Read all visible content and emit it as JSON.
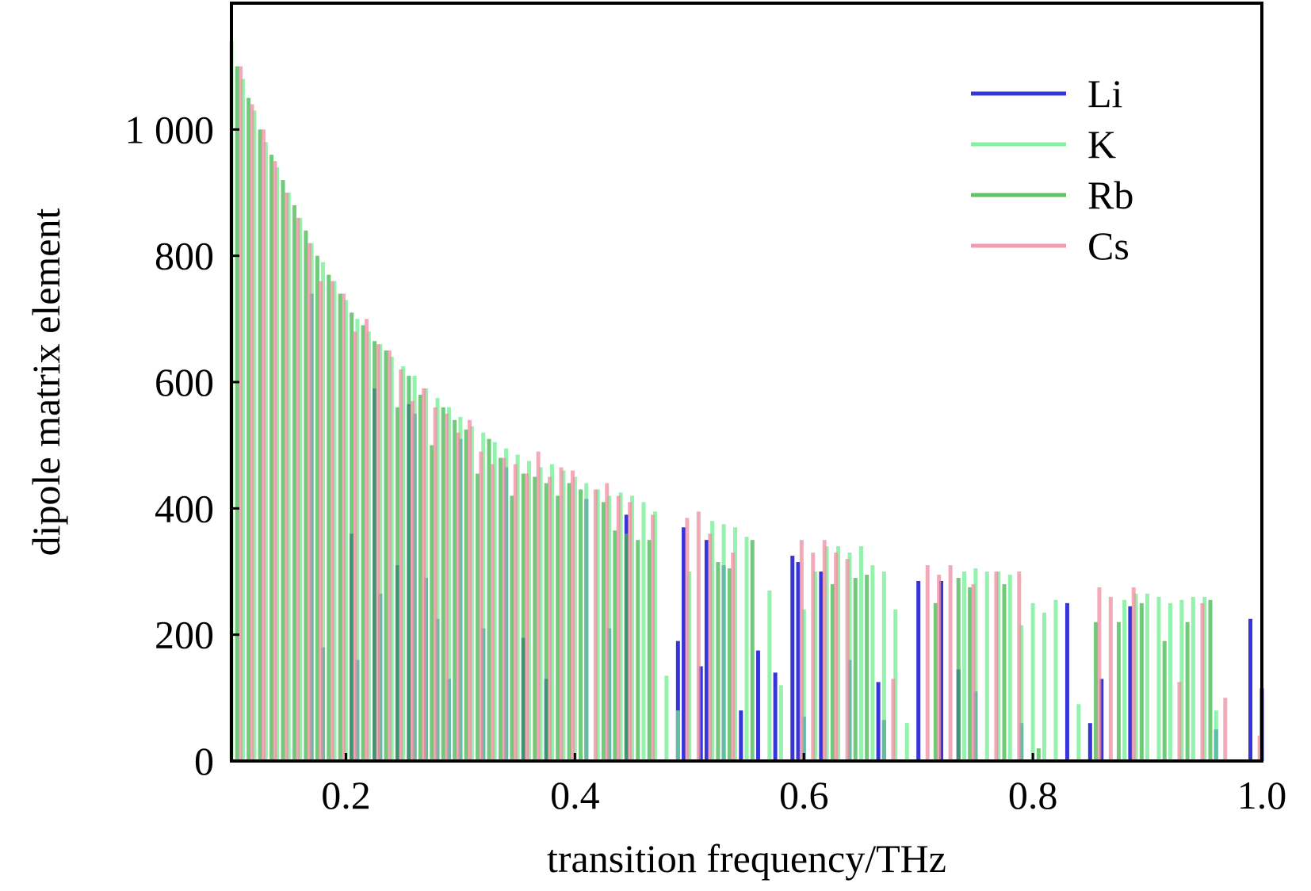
{
  "chart_data": {
    "type": "bar",
    "xlabel": "transition frequency/THz",
    "ylabel": "dipole matrix element",
    "xlim": [
      0.1,
      1.0
    ],
    "ylim": [
      0,
      1200
    ],
    "x_ticks": [
      0.2,
      0.4,
      0.6,
      0.8,
      1.0
    ],
    "x_tick_labels": [
      "0.2",
      "0.4",
      "0.6",
      "0.8",
      "1.0"
    ],
    "y_ticks": [
      0,
      200,
      400,
      600,
      800,
      1000
    ],
    "y_tick_labels": [
      "0",
      "200",
      "400",
      "600",
      "800",
      "1 000"
    ],
    "grid": false,
    "legend_position": "top-right",
    "series": [
      {
        "name": "Li",
        "color": "#2a2ad8",
        "points": [
          [
            0.17,
            740
          ],
          [
            0.18,
            180
          ],
          [
            0.205,
            360
          ],
          [
            0.21,
            160
          ],
          [
            0.225,
            590
          ],
          [
            0.23,
            265
          ],
          [
            0.245,
            310
          ],
          [
            0.255,
            565
          ],
          [
            0.26,
            550
          ],
          [
            0.27,
            290
          ],
          [
            0.28,
            225
          ],
          [
            0.29,
            130
          ],
          [
            0.3,
            510
          ],
          [
            0.32,
            210
          ],
          [
            0.34,
            465
          ],
          [
            0.355,
            195
          ],
          [
            0.375,
            130
          ],
          [
            0.41,
            415
          ],
          [
            0.43,
            210
          ],
          [
            0.445,
            390
          ],
          [
            0.49,
            190
          ],
          [
            0.495,
            370
          ],
          [
            0.51,
            150
          ],
          [
            0.515,
            350
          ],
          [
            0.53,
            310
          ],
          [
            0.545,
            80
          ],
          [
            0.56,
            175
          ],
          [
            0.575,
            140
          ],
          [
            0.59,
            325
          ],
          [
            0.595,
            315
          ],
          [
            0.6,
            70
          ],
          [
            0.615,
            300
          ],
          [
            0.64,
            160
          ],
          [
            0.665,
            125
          ],
          [
            0.67,
            65
          ],
          [
            0.7,
            285
          ],
          [
            0.72,
            285
          ],
          [
            0.735,
            145
          ],
          [
            0.75,
            110
          ],
          [
            0.79,
            60
          ],
          [
            0.83,
            250
          ],
          [
            0.85,
            60
          ],
          [
            0.86,
            130
          ],
          [
            0.885,
            245
          ],
          [
            0.96,
            50
          ],
          [
            0.99,
            225
          ],
          [
            1.0,
            115
          ]
        ]
      },
      {
        "name": "K",
        "color": "#6fee8f",
        "points": [
          [
            0.1,
            1140
          ],
          [
            0.11,
            1080
          ],
          [
            0.12,
            1030
          ],
          [
            0.13,
            980
          ],
          [
            0.14,
            940
          ],
          [
            0.15,
            900
          ],
          [
            0.16,
            860
          ],
          [
            0.17,
            820
          ],
          [
            0.18,
            790
          ],
          [
            0.19,
            760
          ],
          [
            0.2,
            730
          ],
          [
            0.21,
            700
          ],
          [
            0.22,
            680
          ],
          [
            0.23,
            660
          ],
          [
            0.24,
            640
          ],
          [
            0.25,
            625
          ],
          [
            0.26,
            610
          ],
          [
            0.27,
            590
          ],
          [
            0.28,
            575
          ],
          [
            0.29,
            560
          ],
          [
            0.3,
            545
          ],
          [
            0.31,
            530
          ],
          [
            0.32,
            520
          ],
          [
            0.33,
            505
          ],
          [
            0.34,
            495
          ],
          [
            0.35,
            485
          ],
          [
            0.36,
            475
          ],
          [
            0.37,
            465
          ],
          [
            0.38,
            470
          ],
          [
            0.39,
            460
          ],
          [
            0.4,
            450
          ],
          [
            0.41,
            440
          ],
          [
            0.42,
            430
          ],
          [
            0.43,
            420
          ],
          [
            0.44,
            425
          ],
          [
            0.45,
            420
          ],
          [
            0.46,
            410
          ],
          [
            0.47,
            395
          ],
          [
            0.48,
            135
          ],
          [
            0.49,
            80
          ],
          [
            0.5,
            300
          ],
          [
            0.52,
            380
          ],
          [
            0.53,
            375
          ],
          [
            0.54,
            370
          ],
          [
            0.55,
            355
          ],
          [
            0.57,
            270
          ],
          [
            0.58,
            120
          ],
          [
            0.6,
            240
          ],
          [
            0.61,
            300
          ],
          [
            0.62,
            340
          ],
          [
            0.63,
            340
          ],
          [
            0.64,
            330
          ],
          [
            0.65,
            340
          ],
          [
            0.66,
            310
          ],
          [
            0.67,
            300
          ],
          [
            0.68,
            240
          ],
          [
            0.69,
            60
          ],
          [
            0.74,
            300
          ],
          [
            0.75,
            305
          ],
          [
            0.76,
            300
          ],
          [
            0.77,
            300
          ],
          [
            0.78,
            295
          ],
          [
            0.79,
            215
          ],
          [
            0.8,
            250
          ],
          [
            0.81,
            235
          ],
          [
            0.82,
            255
          ],
          [
            0.84,
            90
          ],
          [
            0.88,
            255
          ],
          [
            0.89,
            265
          ],
          [
            0.9,
            265
          ],
          [
            0.91,
            260
          ],
          [
            0.92,
            250
          ],
          [
            0.93,
            255
          ],
          [
            0.94,
            260
          ],
          [
            0.95,
            260
          ],
          [
            0.96,
            80
          ]
        ]
      },
      {
        "name": "Rb",
        "color": "#3fb84c",
        "points": [
          [
            0.105,
            1100
          ],
          [
            0.115,
            1050
          ],
          [
            0.125,
            1000
          ],
          [
            0.135,
            960
          ],
          [
            0.145,
            920
          ],
          [
            0.155,
            880
          ],
          [
            0.165,
            840
          ],
          [
            0.175,
            800
          ],
          [
            0.185,
            770
          ],
          [
            0.195,
            740
          ],
          [
            0.205,
            710
          ],
          [
            0.215,
            690
          ],
          [
            0.225,
            665
          ],
          [
            0.235,
            650
          ],
          [
            0.245,
            560
          ],
          [
            0.255,
            610
          ],
          [
            0.265,
            580
          ],
          [
            0.275,
            500
          ],
          [
            0.285,
            560
          ],
          [
            0.295,
            540
          ],
          [
            0.305,
            525
          ],
          [
            0.315,
            455
          ],
          [
            0.325,
            510
          ],
          [
            0.335,
            480
          ],
          [
            0.345,
            420
          ],
          [
            0.355,
            455
          ],
          [
            0.365,
            450
          ],
          [
            0.375,
            440
          ],
          [
            0.385,
            420
          ],
          [
            0.395,
            440
          ],
          [
            0.405,
            430
          ],
          [
            0.425,
            410
          ],
          [
            0.435,
            365
          ],
          [
            0.445,
            360
          ],
          [
            0.455,
            350
          ],
          [
            0.465,
            350
          ],
          [
            0.525,
            315
          ],
          [
            0.535,
            305
          ],
          [
            0.555,
            350
          ],
          [
            0.625,
            280
          ],
          [
            0.645,
            290
          ],
          [
            0.655,
            295
          ],
          [
            0.715,
            250
          ],
          [
            0.735,
            290
          ],
          [
            0.745,
            275
          ],
          [
            0.775,
            280
          ],
          [
            0.805,
            20
          ],
          [
            0.855,
            220
          ],
          [
            0.875,
            220
          ],
          [
            0.895,
            250
          ],
          [
            0.915,
            190
          ],
          [
            0.935,
            220
          ],
          [
            0.955,
            255
          ]
        ]
      },
      {
        "name": "Cs",
        "color": "#f08ca0",
        "points": [
          [
            0.108,
            1100
          ],
          [
            0.118,
            1040
          ],
          [
            0.128,
            1000
          ],
          [
            0.138,
            950
          ],
          [
            0.148,
            900
          ],
          [
            0.158,
            860
          ],
          [
            0.168,
            820
          ],
          [
            0.178,
            760
          ],
          [
            0.188,
            760
          ],
          [
            0.198,
            740
          ],
          [
            0.208,
            680
          ],
          [
            0.218,
            700
          ],
          [
            0.228,
            660
          ],
          [
            0.238,
            650
          ],
          [
            0.248,
            620
          ],
          [
            0.258,
            570
          ],
          [
            0.268,
            590
          ],
          [
            0.278,
            560
          ],
          [
            0.288,
            550
          ],
          [
            0.298,
            520
          ],
          [
            0.308,
            540
          ],
          [
            0.318,
            490
          ],
          [
            0.328,
            470
          ],
          [
            0.338,
            480
          ],
          [
            0.348,
            470
          ],
          [
            0.358,
            455
          ],
          [
            0.368,
            490
          ],
          [
            0.378,
            450
          ],
          [
            0.388,
            465
          ],
          [
            0.398,
            460
          ],
          [
            0.418,
            430
          ],
          [
            0.428,
            440
          ],
          [
            0.438,
            420
          ],
          [
            0.448,
            410
          ],
          [
            0.468,
            390
          ],
          [
            0.498,
            385
          ],
          [
            0.508,
            395
          ],
          [
            0.518,
            360
          ],
          [
            0.538,
            330
          ],
          [
            0.598,
            350
          ],
          [
            0.608,
            330
          ],
          [
            0.618,
            350
          ],
          [
            0.628,
            330
          ],
          [
            0.638,
            320
          ],
          [
            0.678,
            130
          ],
          [
            0.708,
            310
          ],
          [
            0.718,
            295
          ],
          [
            0.728,
            310
          ],
          [
            0.748,
            280
          ],
          [
            0.768,
            300
          ],
          [
            0.788,
            300
          ],
          [
            0.858,
            275
          ],
          [
            0.868,
            260
          ],
          [
            0.888,
            275
          ],
          [
            0.928,
            125
          ],
          [
            0.948,
            250
          ],
          [
            0.968,
            100
          ],
          [
            0.998,
            40
          ]
        ]
      }
    ]
  }
}
